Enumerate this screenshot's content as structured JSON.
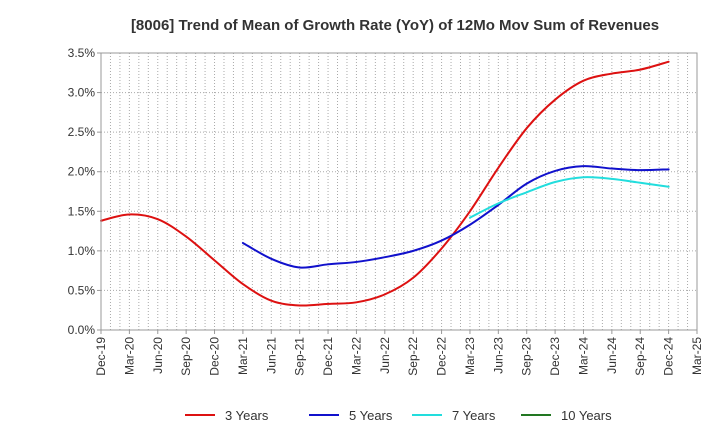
{
  "chart_data": {
    "type": "line",
    "title": "[8006]  Trend of Mean of Growth Rate (YoY) of 12Mo Mov Sum of Revenues",
    "xlabel": "",
    "ylabel": "",
    "ylim": [
      0,
      3.5
    ],
    "yticks": [
      "0.0%",
      "0.5%",
      "1.0%",
      "1.5%",
      "2.0%",
      "2.5%",
      "3.0%",
      "3.5%"
    ],
    "categories": [
      "Dec-19",
      "Mar-20",
      "Jun-20",
      "Sep-20",
      "Dec-20",
      "Mar-21",
      "Jun-21",
      "Sep-21",
      "Dec-21",
      "Mar-22",
      "Jun-22",
      "Sep-22",
      "Dec-22",
      "Mar-23",
      "Jun-23",
      "Sep-23",
      "Dec-23",
      "Mar-24",
      "Jun-24",
      "Sep-24",
      "Dec-24",
      "Mar-25"
    ],
    "grid": true,
    "legend_position": "bottom",
    "series": [
      {
        "name": "3 Years",
        "color": "#dd1111",
        "values": [
          1.38,
          1.46,
          1.4,
          1.18,
          0.88,
          0.58,
          0.37,
          0.31,
          0.33,
          0.35,
          0.45,
          0.66,
          1.03,
          1.5,
          2.05,
          2.55,
          2.91,
          3.15,
          3.24,
          3.29,
          3.39,
          null
        ]
      },
      {
        "name": "5 Years",
        "color": "#1111cc",
        "values": [
          null,
          null,
          null,
          null,
          null,
          1.1,
          0.9,
          0.79,
          0.83,
          0.86,
          0.92,
          1.0,
          1.13,
          1.33,
          1.58,
          1.85,
          2.01,
          2.07,
          2.04,
          2.02,
          2.03,
          null
        ]
      },
      {
        "name": "7 Years",
        "color": "#22dddd",
        "values": [
          null,
          null,
          null,
          null,
          null,
          null,
          null,
          null,
          null,
          null,
          null,
          null,
          null,
          1.42,
          1.6,
          1.74,
          1.87,
          1.93,
          1.91,
          1.86,
          1.81,
          null
        ]
      },
      {
        "name": "10 Years",
        "color": "#227722",
        "values": [
          null,
          null,
          null,
          null,
          null,
          null,
          null,
          null,
          null,
          null,
          null,
          null,
          null,
          null,
          null,
          null,
          null,
          null,
          null,
          null,
          null,
          null
        ]
      }
    ]
  }
}
